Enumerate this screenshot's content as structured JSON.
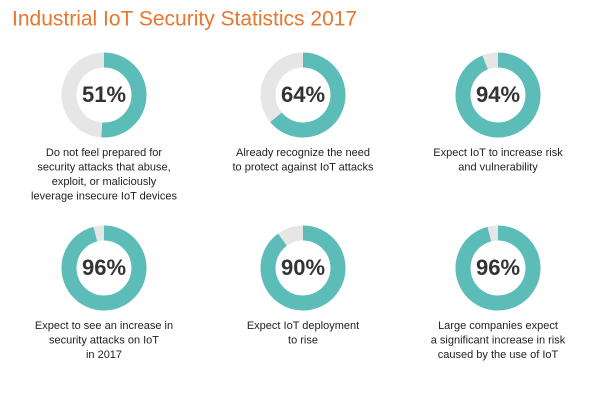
{
  "title": "Industrial IoT Security Statistics 2017",
  "chart_data": [
    {
      "type": "donut",
      "values": [
        51
      ],
      "value_labels": [
        "51%"
      ],
      "color": "#5bbcb8",
      "track_color": "#e6e6e6",
      "caption": [
        "Do not feel prepared for",
        "security attacks that abuse,",
        "exploit, or maliciously",
        "leverage insecure IoT devices"
      ]
    },
    {
      "type": "donut",
      "values": [
        64
      ],
      "value_labels": [
        "64%"
      ],
      "color": "#5bbcb8",
      "track_color": "#e6e6e6",
      "caption": [
        "Already recognize the need",
        "to protect against IoT attacks"
      ]
    },
    {
      "type": "donut",
      "values": [
        94
      ],
      "value_labels": [
        "94%"
      ],
      "color": "#5bbcb8",
      "track_color": "#e6e6e6",
      "caption": [
        "Expect IoT to increase risk",
        "and vulnerability"
      ]
    },
    {
      "type": "donut",
      "values": [
        96
      ],
      "value_labels": [
        "96%"
      ],
      "color": "#5bbcb8",
      "track_color": "#e6e6e6",
      "caption": [
        "Expect to see an increase in",
        "security attacks on IoT",
        "in 2017"
      ]
    },
    {
      "type": "donut",
      "values": [
        90
      ],
      "value_labels": [
        "90%"
      ],
      "color": "#5bbcb8",
      "track_color": "#e6e6e6",
      "caption": [
        "Expect IoT deployment",
        "to rise"
      ]
    },
    {
      "type": "donut",
      "values": [
        96
      ],
      "value_labels": [
        "96%"
      ],
      "color": "#5bbcb8",
      "track_color": "#e6e6e6",
      "caption": [
        "Large companies expect",
        "a significant increase in risk",
        "caused by the use of IoT"
      ]
    }
  ]
}
